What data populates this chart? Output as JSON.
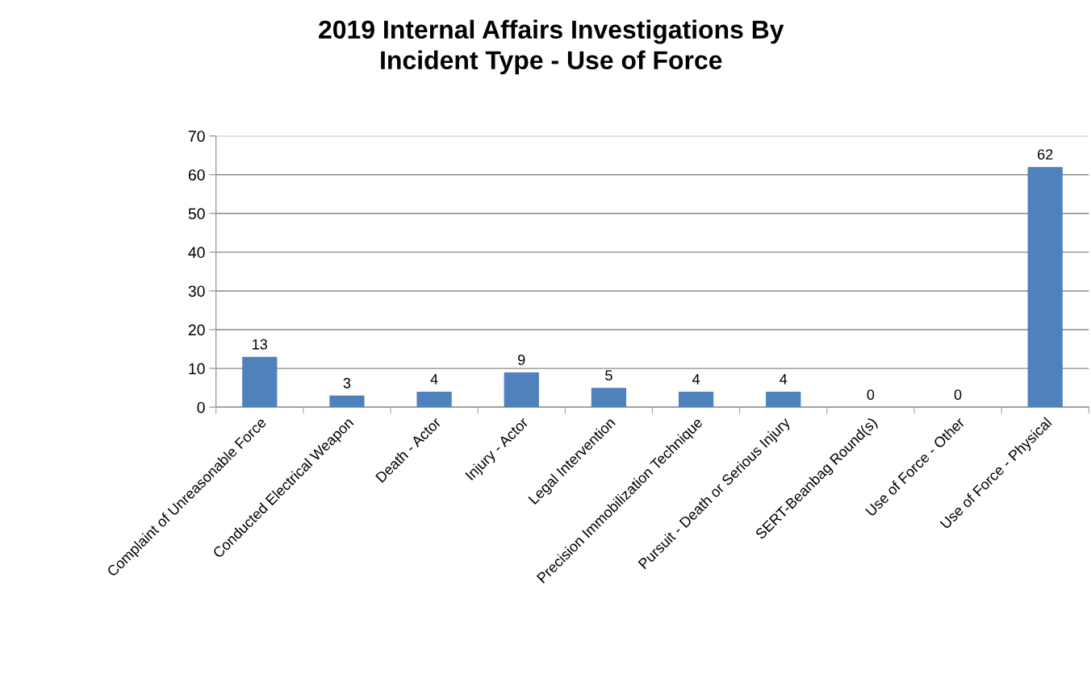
{
  "chart_data": {
    "type": "bar",
    "title": "2019 Internal Affairs Investigations By\nIncident Type - Use of Force",
    "categories": [
      "Complaint of Unreasonable Force",
      "Conducted Electrical Weapon",
      "Death - Actor",
      "Injury - Actor",
      "Legal Intervention",
      "Precision Immobilization Technique",
      "Pursuit - Death or Serious Injury",
      "SERT-Beanbag Round(s)",
      "Use of Force - Other",
      "Use of Force - Physical"
    ],
    "values": [
      13,
      3,
      4,
      9,
      5,
      4,
      4,
      0,
      0,
      62
    ],
    "color": "#4f81bd",
    "ylim": [
      0,
      70
    ],
    "yticks": [
      0,
      10,
      20,
      30,
      40,
      50,
      60,
      70
    ],
    "grid": "y",
    "data_labels": true,
    "legend": false
  }
}
